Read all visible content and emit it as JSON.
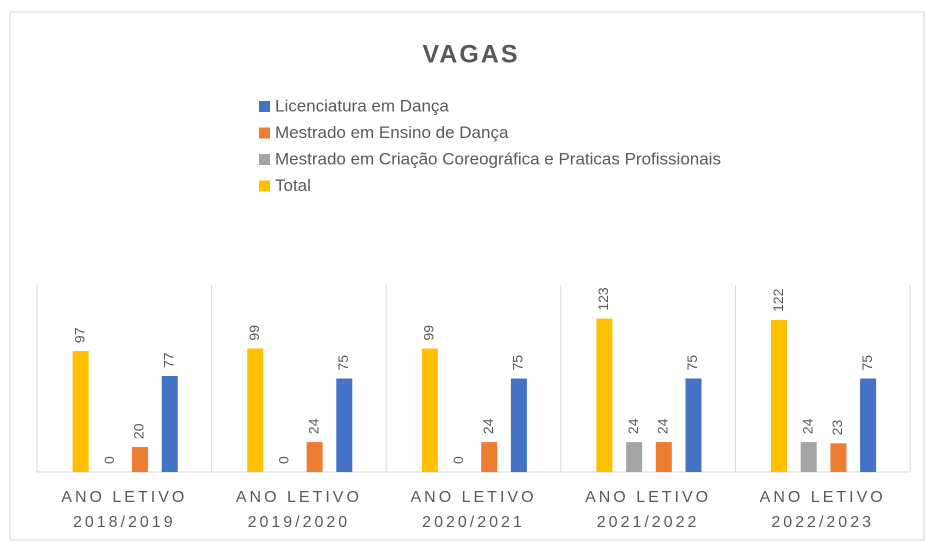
{
  "chart_data": {
    "type": "bar",
    "title": "VAGAS",
    "categories": [
      "ANO LETIVO 2018/2019",
      "ANO LETIVO 2019/2020",
      "ANO LETIVO 2020/2021",
      "ANO LETIVO 2021/2022",
      "ANO LETIVO 2022/2023"
    ],
    "series": [
      {
        "name": "Licenciatura em Dança",
        "color": "#4472c4",
        "values": [
          77,
          75,
          75,
          75,
          75
        ]
      },
      {
        "name": "Mestrado em Ensino de Dança",
        "color": "#ed7d31",
        "values": [
          20,
          24,
          24,
          24,
          23
        ]
      },
      {
        "name": "Mestrado em Criação Coreográfica e Praticas Profissionais",
        "color": "#a5a5a5",
        "values": [
          0,
          0,
          0,
          24,
          24
        ]
      },
      {
        "name": "Total",
        "color": "#ffc000",
        "values": [
          97,
          99,
          99,
          123,
          122
        ]
      }
    ],
    "ylim": [
      0,
      150
    ],
    "legend": "top"
  }
}
